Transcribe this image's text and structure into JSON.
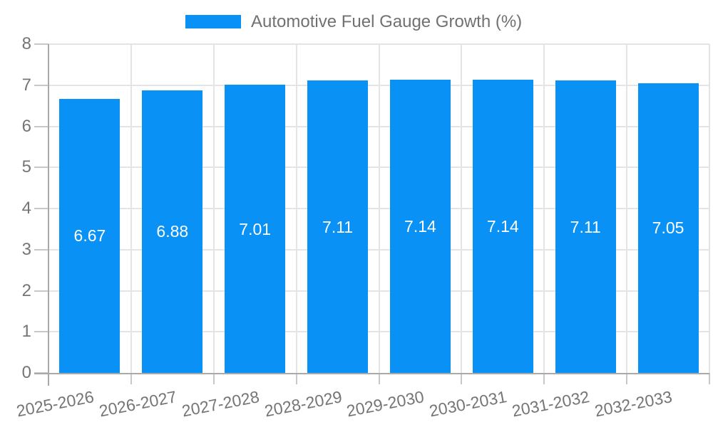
{
  "chart_data": {
    "type": "bar",
    "title": "",
    "legend": {
      "label": "Automotive Fuel Gauge Growth (%)",
      "position": "top-center"
    },
    "categories": [
      "2025-2026",
      "2026-2027",
      "2027-2028",
      "2028-2029",
      "2029-2030",
      "2030-2031",
      "2031-2032",
      "2032-2033"
    ],
    "series": [
      {
        "name": "Automotive Fuel Gauge Growth (%)",
        "values": [
          6.67,
          6.88,
          7.01,
          7.11,
          7.14,
          7.14,
          7.11,
          7.05
        ]
      }
    ],
    "bar_labels": [
      "6.67",
      "6.88",
      "7.01",
      "7.11",
      "7.14",
      "7.14",
      "7.11",
      "7.05"
    ],
    "xlabel": "",
    "ylabel": "",
    "ylim": [
      0,
      8
    ],
    "yticks": [
      0,
      1,
      2,
      3,
      4,
      5,
      6,
      7,
      8
    ],
    "grid": true,
    "x_label_rotation_deg": -11,
    "colors": {
      "bar": "#0991f5",
      "bar_label": "#ffffff",
      "grid": "#e4e4e4",
      "axis": "#a9a9a9",
      "tick": "#c8c8c8",
      "axis_text": "#757575",
      "legend_text": "#717171",
      "background": "#ffffff"
    }
  }
}
